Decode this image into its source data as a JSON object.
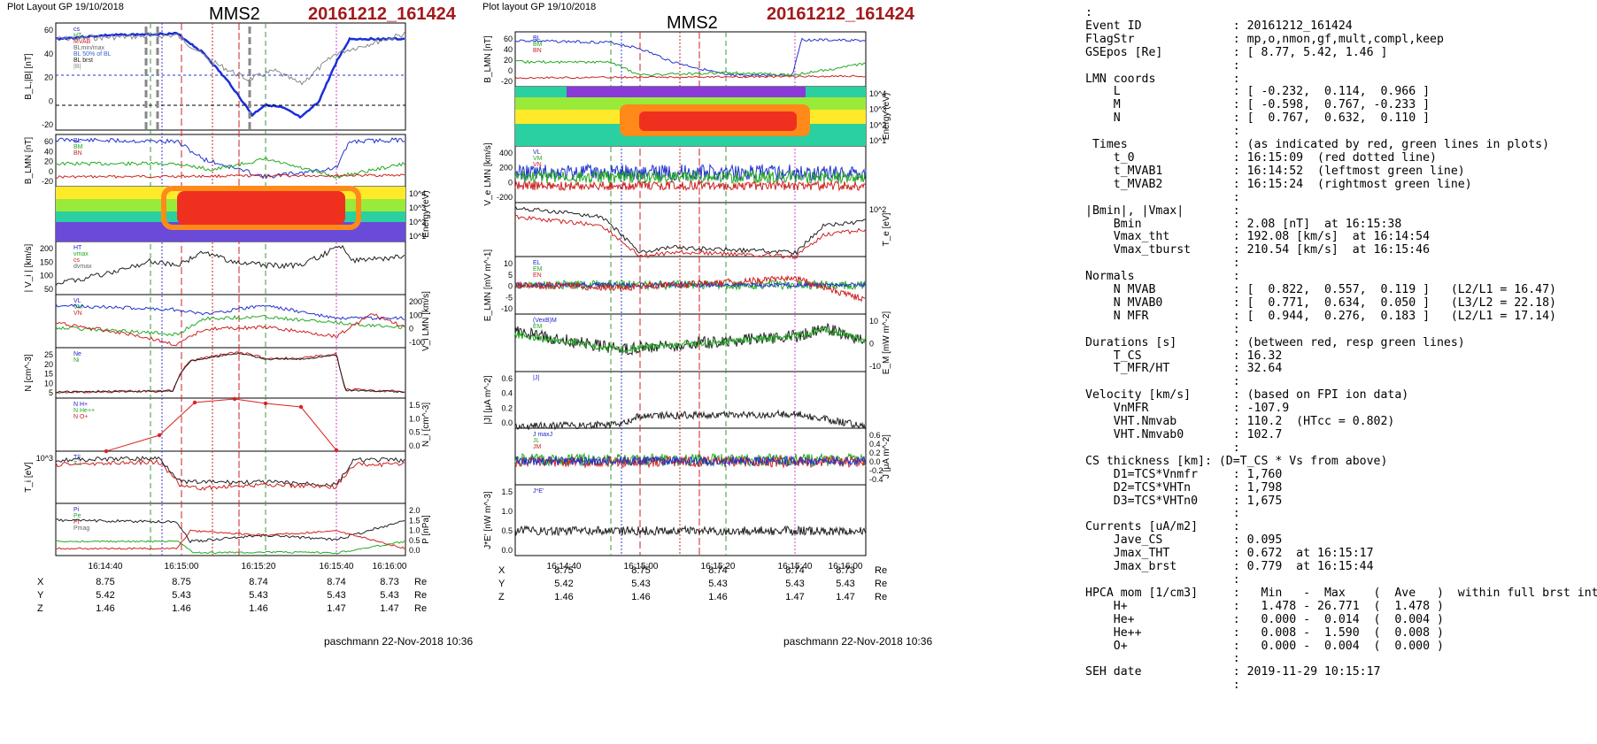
{
  "left_figure": {
    "plot_title": "Plot Layout GP 19/10/2018",
    "spacecraft": "MMS2",
    "event": "20161212_161424",
    "footer": "paschmann 22-Nov-2018 10:36",
    "time_ticks": [
      "16:14:40",
      "16:15:00",
      "16:15:20",
      "16:15:40",
      "16:16:00"
    ],
    "coords": {
      "rows": [
        {
          "label": "X",
          "values": [
            "8.75",
            "8.75",
            "8.74",
            "8.74",
            "8.73"
          ],
          "unit": "Re"
        },
        {
          "label": "Y",
          "values": [
            "5.42",
            "5.43",
            "5.43",
            "5.43",
            "5.43"
          ],
          "unit": "Re"
        },
        {
          "label": "Z",
          "values": [
            "1.46",
            "1.46",
            "1.46",
            "1.47",
            "1.47"
          ],
          "unit": "Re"
        }
      ]
    },
    "panels": [
      {
        "ylabel": "B_L,|B| [nT]",
        "ticks": [
          "60",
          "40",
          "20",
          "0",
          "-20"
        ],
        "legend": [
          "cs",
          "HT",
          "MVAB",
          "BLmin/max",
          "BL 50% of BL",
          "BL brst",
          "|B|"
        ]
      },
      {
        "ylabel": "B_LMN [nT]",
        "ticks": [
          "60",
          "40",
          "20",
          "0",
          "-20"
        ],
        "legend": [
          "BL",
          "BM",
          "BN"
        ]
      },
      {
        "ylabel": "Energy (eV)",
        "ticks": [
          "10^4",
          "10^3",
          "10^2",
          "10^1"
        ],
        "legend": []
      },
      {
        "ylabel": "| V_i | [km/s]",
        "ticks": [
          "200",
          "150",
          "100",
          "50"
        ],
        "legend": [
          "HT",
          "vmax",
          "cs",
          "dvmax"
        ]
      },
      {
        "ylabel": "V_i LMN [km/s]",
        "ticks": [
          "200",
          "100",
          "0",
          "-100"
        ],
        "legend": [
          "VL",
          "VM",
          "VN"
        ]
      },
      {
        "ylabel": "N [cm^-3]",
        "ticks": [
          "25",
          "20",
          "15",
          "10",
          "5"
        ],
        "legend": [
          "Ne",
          "Ni"
        ]
      },
      {
        "ylabel": "N_i [cm^-3]",
        "ticks": [
          "1.5",
          "1.0",
          "0.5",
          "0.0"
        ],
        "legend": [
          "N H+",
          "N He++",
          "N O+"
        ]
      },
      {
        "ylabel": "T_i [eV]",
        "ticks": [
          "10^3"
        ],
        "legend": [
          "T||",
          "T⊥"
        ]
      },
      {
        "ylabel": "P [nPa]",
        "ticks": [
          "2.0",
          "1.5",
          "1.0",
          "0.5",
          "0.0"
        ],
        "legend": [
          "Pi",
          "Pe",
          "Pt",
          "Pmag"
        ]
      }
    ]
  },
  "right_figure": {
    "plot_title": "Plot layout GP 19/10/2018",
    "spacecraft": "MMS2",
    "event": "20161212_161424",
    "footer": "paschmann 22-Nov-2018 10:36",
    "time_ticks": [
      "16:14:40",
      "16:15:00",
      "16:15:20",
      "16:15:40",
      "16:16:00"
    ],
    "coords": {
      "rows": [
        {
          "label": "X",
          "values": [
            "8.75",
            "8.75",
            "8.74",
            "8.74",
            "8.73"
          ],
          "unit": "Re"
        },
        {
          "label": "Y",
          "values": [
            "5.42",
            "5.43",
            "5.43",
            "5.43",
            "5.43"
          ],
          "unit": "Re"
        },
        {
          "label": "Z",
          "values": [
            "1.46",
            "1.46",
            "1.46",
            "1.47",
            "1.47"
          ],
          "unit": "Re"
        }
      ]
    },
    "panels": [
      {
        "ylabel": "B_LMN [nT]",
        "ticks": [
          "60",
          "40",
          "20",
          "0",
          "-20"
        ],
        "legend": [
          "BL",
          "BM",
          "BN"
        ]
      },
      {
        "ylabel": "Energy (eV)",
        "ticks": [
          "10^4",
          "10^3",
          "10^2",
          "10^1"
        ],
        "legend": []
      },
      {
        "ylabel": "V_e LMN [km/s]",
        "ticks": [
          "400",
          "200",
          "0",
          "-200"
        ],
        "legend": [
          "VL",
          "VM",
          "VN"
        ]
      },
      {
        "ylabel": "T_e [eV]",
        "ticks": [
          "10^2"
        ],
        "legend": []
      },
      {
        "ylabel": "E_LMN [mV m^-1]",
        "ticks": [
          "10",
          "5",
          "0",
          "-5",
          "-10"
        ],
        "legend": [
          "EL",
          "EM",
          "EN"
        ]
      },
      {
        "ylabel": "E_M [mW m^-2]",
        "ticks": [
          "10",
          "0",
          "-10"
        ],
        "legend": [
          "(VexB)M",
          "EM"
        ]
      },
      {
        "ylabel": "|J| [μA m^-2]",
        "ticks": [
          "0.6",
          "0.4",
          "0.2",
          "0.0"
        ],
        "legend": [
          "|J|"
        ]
      },
      {
        "ylabel": "J [μA m^-2]",
        "ticks": [
          "0.6",
          "0.4",
          "0.2",
          "0.0",
          "-0.2",
          "-0.4"
        ],
        "legend": [
          "J maxJ",
          "JL",
          "JM"
        ]
      },
      {
        "ylabel": "J*E' [nW m^-3]",
        "ticks": [
          "1.5",
          "1.0",
          "0.5",
          "0.0"
        ],
        "legend": [
          "J*E'"
        ]
      }
    ]
  },
  "summary_lines": [
    ":",
    "Event ID             : 20161212_161424",
    "FlagStr              : mp,o,nmon,gf,mult,compl,keep",
    "GSEpos [Re]          : [ 8.77, 5.42, 1.46 ]",
    "                     :",
    "LMN coords           :",
    "    L                : [ -0.232,  0.114,  0.966 ]",
    "    M                : [ -0.598,  0.767, -0.233 ]",
    "    N                : [  0.767,  0.632,  0.110 ]",
    "                     :",
    " Times               : (as indicated by red, green lines in plots)",
    "    t_0              : 16:15:09  (red dotted line)",
    "    t_MVAB1          : 16:14:52  (leftmost green line)",
    "    t_MVAB2          : 16:15:24  (rightmost green line)",
    "                     :",
    "|Bmin|, |Vmax|       :",
    "    Bmin             : 2.08 [nT]  at 16:15:38",
    "    Vmax_tht         : 192.08 [km/s]  at 16:14:54",
    "    Vmax_tburst      : 210.54 [km/s]  at 16:15:46",
    "                     :",
    "Normals              :",
    "    N MVAB           : [  0.822,  0.557,  0.119 ]   (L2/L1 = 16.47)",
    "    N MVAB0          : [  0.771,  0.634,  0.050 ]   (L3/L2 = 22.18)",
    "    N MFR            : [  0.944,  0.276,  0.183 ]   (L2/L1 = 17.14)",
    "                     :",
    "Durations [s]        : (between red, resp green lines)",
    "    T_CS             : 16.32",
    "    T_MFR/HT         : 32.64",
    "                     :",
    "Velocity [km/s]      : (based on FPI ion data)",
    "    VnMFR            : -107.9",
    "    VHT.Nmvab        : 110.2  (HTcc = 0.802)",
    "    VHT.Nmvab0       : 102.7",
    "                     :",
    "CS thickness [km]: (D=T_CS * Vs from above)",
    "    D1=TCS*Vnmfr     : 1,760",
    "    D2=TCS*VHTn      : 1,798",
    "    D3=TCS*VHTn0     : 1,675",
    "                     :",
    "Currents [uA/m2]     :",
    "    Jave_CS          : 0.095",
    "    Jmax_THT         : 0.672  at 16:15:17",
    "    Jmax_brst        : 0.779  at 16:15:44",
    "                     :",
    "HPCA mom [1/cm3]     :   Min   -  Max    (  Ave   )  within full brst int",
    "    H+               :   1.478 - 26.771  (  1.478 )",
    "    He+              :   0.000 -  0.014  (  0.004 )",
    "    He++             :   0.008 -  1.590  (  0.008 )",
    "    O+               :   0.000 -  0.004  (  0.000 )",
    "                     :",
    "SEH date             : 2019-11-29 10:15:17",
    "                     :"
  ],
  "chart_data": [
    {
      "type": "line",
      "title": "MMS2",
      "subtitle": "20161212_161424",
      "xlabel": "",
      "x_ticks": [
        "16:14:40",
        "16:15:00",
        "16:15:20",
        "16:15:40",
        "16:16:00"
      ],
      "series": [
        {
          "name": "BL brst",
          "panel": "B_L,|B| [nT]",
          "x": [
            "16:14:25",
            "16:14:40",
            "16:14:55",
            "16:15:05",
            "16:15:12",
            "16:15:20",
            "16:15:28",
            "16:15:35",
            "16:15:42",
            "16:15:50",
            "16:16:05"
          ],
          "values": [
            60,
            63,
            64,
            35,
            15,
            -8,
            -2,
            -12,
            -5,
            55,
            60
          ]
        },
        {
          "name": "Ne",
          "panel": "N [cm^-3]",
          "x": [
            "16:14:25",
            "16:14:50",
            "16:15:00",
            "16:15:05",
            "16:15:10",
            "16:15:20",
            "16:15:30",
            "16:15:40",
            "16:15:45",
            "16:16:05"
          ],
          "values": [
            1,
            1,
            2,
            19,
            22,
            24,
            22,
            23,
            2,
            1
          ]
        },
        {
          "name": "N He++",
          "panel": "N_i [cm^-3]",
          "x": [
            "16:14:30",
            "16:14:50",
            "16:15:00",
            "16:15:15",
            "16:15:25",
            "16:15:35",
            "16:15:45"
          ],
          "values": [
            0,
            0.45,
            1.45,
            1.55,
            1.4,
            1.3,
            0
          ]
        },
        {
          "name": "|J|",
          "panel": "|J| [μA m^-2]",
          "x": [
            "16:14:45",
            "16:15:00",
            "16:15:15",
            "16:15:20",
            "16:15:44",
            "16:15:50"
          ],
          "values": [
            0.05,
            0.25,
            0.67,
            0.3,
            0.78,
            0.1
          ]
        }
      ]
    }
  ]
}
